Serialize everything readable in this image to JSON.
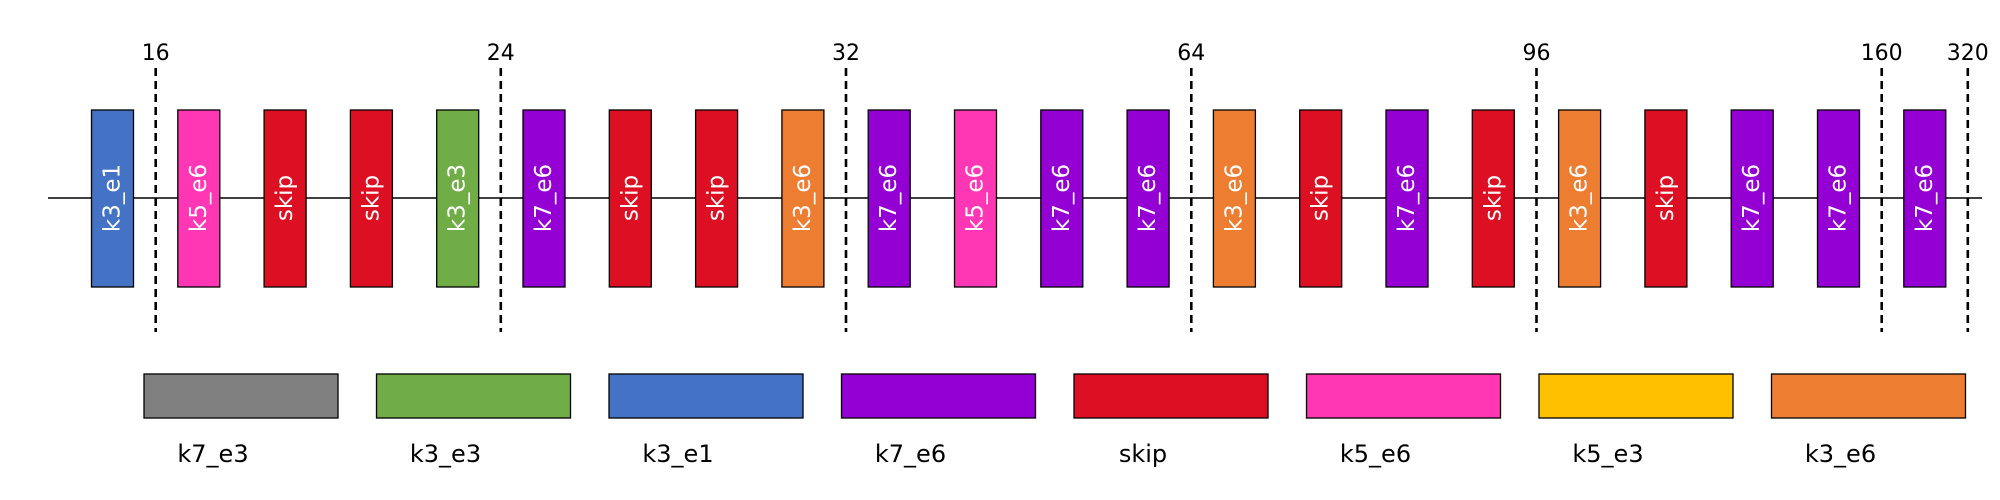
{
  "blocks": [
    {
      "name": "k3_e1",
      "color": "#4472c4"
    },
    {
      "name": "k5_e6",
      "color": "#ff37b5"
    },
    {
      "name": "skip",
      "color": "#dc1022"
    },
    {
      "name": "skip",
      "color": "#dc1022"
    },
    {
      "name": "k3_e3",
      "color": "#70ad47"
    },
    {
      "name": "k7_e6",
      "color": "#9400d3"
    },
    {
      "name": "skip",
      "color": "#dc1022"
    },
    {
      "name": "skip",
      "color": "#dc1022"
    },
    {
      "name": "k3_e6",
      "color": "#ed7d31"
    },
    {
      "name": "k7_e6",
      "color": "#9400d3"
    },
    {
      "name": "k5_e6",
      "color": "#ff37b5"
    },
    {
      "name": "k7_e6",
      "color": "#9400d3"
    },
    {
      "name": "k7_e6",
      "color": "#9400d3"
    },
    {
      "name": "k3_e6",
      "color": "#ed7d31"
    },
    {
      "name": "skip",
      "color": "#dc1022"
    },
    {
      "name": "k7_e6",
      "color": "#9400d3"
    },
    {
      "name": "skip",
      "color": "#dc1022"
    },
    {
      "name": "k3_e6",
      "color": "#ed7d31"
    },
    {
      "name": "skip",
      "color": "#dc1022"
    },
    {
      "name": "k7_e6",
      "color": "#9400d3"
    },
    {
      "name": "k7_e6",
      "color": "#9400d3"
    },
    {
      "name": "k7_e6",
      "color": "#9400d3"
    }
  ],
  "channel_markers": [
    {
      "label": "16",
      "after_block": 1
    },
    {
      "label": "24",
      "after_block": 5
    },
    {
      "label": "32",
      "after_block": 9
    },
    {
      "label": "64",
      "after_block": 13
    },
    {
      "label": "96",
      "after_block": 17
    },
    {
      "label": "160",
      "after_block": 21
    },
    {
      "label": "320",
      "after_block": 22
    }
  ],
  "legend": [
    {
      "name": "k7_e3",
      "color": "#808080"
    },
    {
      "name": "k3_e3",
      "color": "#70ad47"
    },
    {
      "name": "k3_e1",
      "color": "#4472c4"
    },
    {
      "name": "k7_e6",
      "color": "#9400d3"
    },
    {
      "name": "skip",
      "color": "#dc1022"
    },
    {
      "name": "k5_e6",
      "color": "#ff37b5"
    },
    {
      "name": "k5_e3",
      "color": "#ffc000"
    },
    {
      "name": "k3_e6",
      "color": "#ed7d31"
    }
  ]
}
